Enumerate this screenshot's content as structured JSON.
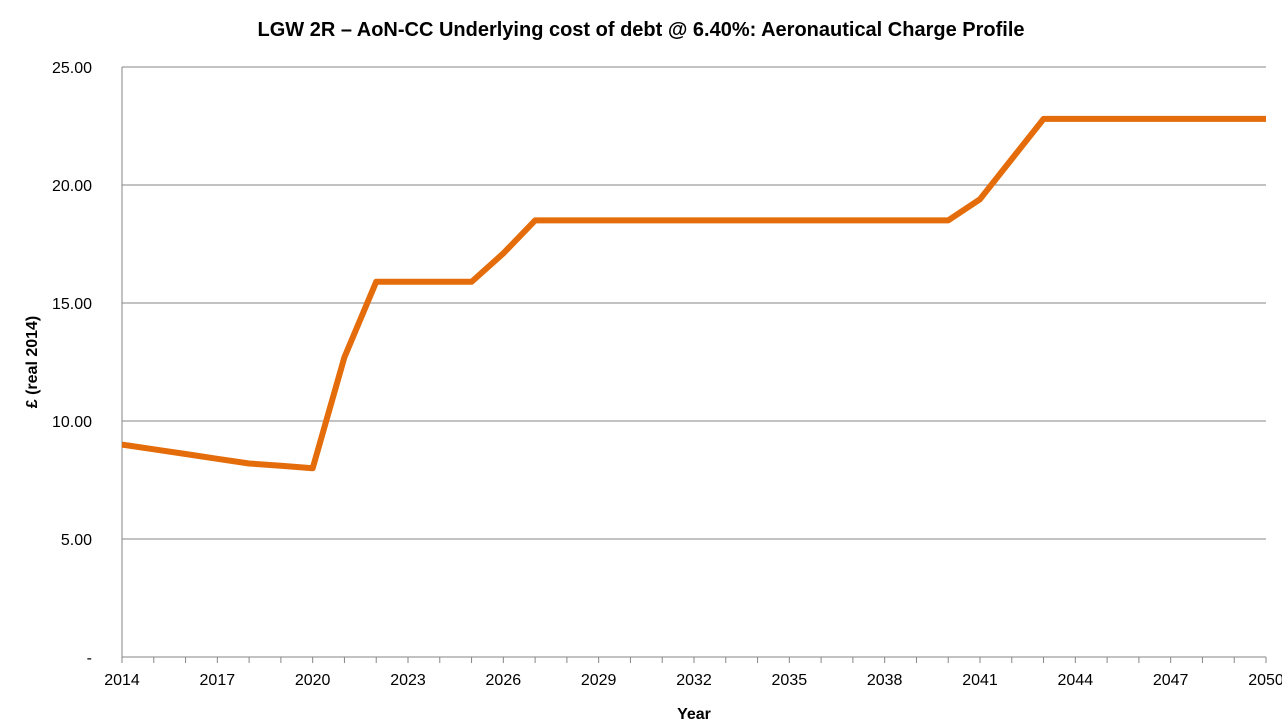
{
  "chart_data": {
    "type": "line",
    "title": "LGW 2R – AoN-CC Underlying cost of debt @ 6.40%: Aeronautical Charge Profile",
    "xlabel": "Year",
    "ylabel": "£ (real 2014)",
    "ylim": [
      0,
      25
    ],
    "y_ticks": [
      0,
      5,
      10,
      15,
      20,
      25
    ],
    "y_tick_labels": [
      "-",
      "5.00",
      "10.00",
      "15.00",
      "20.00",
      "25.00"
    ],
    "xlim": [
      2014,
      2050
    ],
    "x_tick_labels": [
      "2014",
      "2017",
      "2020",
      "2023",
      "2026",
      "2029",
      "2032",
      "2035",
      "2038",
      "2041",
      "2044",
      "2047",
      "2050"
    ],
    "grid": "horizontal",
    "legend": "none",
    "series": [
      {
        "color": "#E46C0A",
        "x": [
          2014,
          2015,
          2016,
          2017,
          2018,
          2019,
          2020,
          2021,
          2022,
          2023,
          2024,
          2025,
          2026,
          2027,
          2028,
          2029,
          2030,
          2031,
          2032,
          2033,
          2034,
          2035,
          2036,
          2037,
          2038,
          2039,
          2040,
          2041,
          2042,
          2043,
          2044,
          2045,
          2046,
          2047,
          2048,
          2049,
          2050
        ],
        "values": [
          9.0,
          8.8,
          8.6,
          8.4,
          8.2,
          8.1,
          8.0,
          12.7,
          15.9,
          15.9,
          15.9,
          15.9,
          17.1,
          18.5,
          18.5,
          18.5,
          18.5,
          18.5,
          18.5,
          18.5,
          18.5,
          18.5,
          18.5,
          18.5,
          18.5,
          18.5,
          18.5,
          19.4,
          21.1,
          22.8,
          22.8,
          22.8,
          22.8,
          22.8,
          22.8,
          22.8,
          22.8
        ]
      }
    ]
  }
}
